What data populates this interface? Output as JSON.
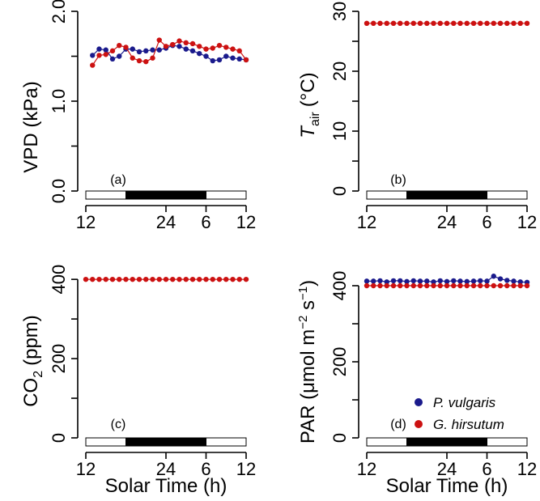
{
  "colors": {
    "p_vulgaris": "#1a1a8c",
    "g_hirsutum": "#cc1111",
    "night_bar": "#000000",
    "day_bar": "#ffffff"
  },
  "legend": {
    "placement": "bottom-right of panel (d)",
    "items": [
      {
        "label": "P. vulgaris",
        "color": "#1a1a8c"
      },
      {
        "label": "G. hirsutum",
        "color": "#cc1111"
      }
    ]
  },
  "x_axis": {
    "title": "Solar Time (h)",
    "ticks": [
      {
        "value": 0,
        "label": "12"
      },
      {
        "value": 12,
        "label": "24"
      },
      {
        "value": 18,
        "label": "6"
      },
      {
        "value": 24,
        "label": "12"
      }
    ],
    "light_schedule": [
      {
        "start": 0,
        "end": 6,
        "state": "light"
      },
      {
        "start": 6,
        "end": 18,
        "state": "dark"
      },
      {
        "start": 18,
        "end": 24,
        "state": "light"
      }
    ]
  },
  "chart_data": [
    {
      "panel": "(a)",
      "type": "line",
      "ylabel": "VPD (kPa)",
      "ylim": [
        0,
        2.0
      ],
      "yticks": [
        "0.0",
        "1.0",
        "2.0"
      ],
      "series": [
        {
          "name": "P. vulgaris",
          "x": [
            1,
            2,
            3,
            4,
            5,
            6,
            7,
            8,
            9,
            10,
            11,
            12,
            13,
            14,
            15,
            16,
            17,
            18,
            19,
            20,
            21,
            22,
            23,
            24
          ],
          "values": [
            1.51,
            1.58,
            1.57,
            1.47,
            1.5,
            1.58,
            1.58,
            1.55,
            1.56,
            1.57,
            1.57,
            1.59,
            1.62,
            1.61,
            1.58,
            1.56,
            1.53,
            1.5,
            1.45,
            1.46,
            1.5,
            1.48,
            1.47,
            1.46
          ]
        },
        {
          "name": "G. hirsutum",
          "x": [
            1,
            2,
            3,
            4,
            5,
            6,
            7,
            8,
            9,
            10,
            11,
            12,
            13,
            14,
            15,
            16,
            17,
            18,
            19,
            20,
            21,
            22,
            23,
            24
          ],
          "values": [
            1.4,
            1.51,
            1.52,
            1.56,
            1.62,
            1.6,
            1.48,
            1.45,
            1.44,
            1.48,
            1.68,
            1.61,
            1.63,
            1.67,
            1.65,
            1.64,
            1.61,
            1.58,
            1.59,
            1.62,
            1.6,
            1.58,
            1.56,
            1.46
          ]
        }
      ]
    },
    {
      "panel": "(b)",
      "type": "line",
      "ylabel_main": "T",
      "ylabel_sub": "air",
      "ylabel_unit": "(°C)",
      "ylim": [
        0,
        30
      ],
      "yticks": [
        "0",
        "10",
        "20",
        "30"
      ],
      "series": [
        {
          "name": "G. hirsutum",
          "x": [
            0,
            1,
            2,
            3,
            4,
            5,
            6,
            7,
            8,
            9,
            10,
            11,
            12,
            13,
            14,
            15,
            16,
            17,
            18,
            19,
            20,
            21,
            22,
            23,
            24
          ],
          "values": [
            28,
            28,
            28,
            28,
            28,
            28,
            28,
            28,
            28,
            28,
            28,
            28,
            28,
            28,
            28,
            28,
            28,
            28,
            28,
            28,
            28,
            28,
            28,
            28,
            28
          ]
        }
      ]
    },
    {
      "panel": "(c)",
      "type": "line",
      "ylabel_main": "CO",
      "ylabel_sub": "2",
      "ylabel_unit": "(ppm)",
      "ylim": [
        0,
        480
      ],
      "yticks": [
        "0",
        "200",
        "400"
      ],
      "series": [
        {
          "name": "G. hirsutum",
          "x": [
            0,
            1,
            2,
            3,
            4,
            5,
            6,
            7,
            8,
            9,
            10,
            11,
            12,
            13,
            14,
            15,
            16,
            17,
            18,
            19,
            20,
            21,
            22,
            23,
            24
          ],
          "values": [
            400,
            400,
            400,
            400,
            400,
            400,
            400,
            400,
            400,
            400,
            400,
            400,
            400,
            400,
            400,
            400,
            400,
            400,
            400,
            400,
            400,
            400,
            400,
            400,
            400
          ]
        }
      ]
    },
    {
      "panel": "(d)",
      "type": "line",
      "ylabel": "PAR (μmol m−2 s−1)",
      "ylim": [
        0,
        500
      ],
      "yticks": [
        "0",
        "200",
        "400"
      ],
      "series": [
        {
          "name": "P. vulgaris",
          "x": [
            0,
            1,
            2,
            3,
            4,
            5,
            6,
            7,
            8,
            9,
            10,
            11,
            12,
            13,
            14,
            15,
            16,
            17,
            18,
            19,
            20,
            21,
            22,
            23,
            24
          ],
          "values": [
            412,
            412,
            413,
            410,
            413,
            413,
            411,
            413,
            412,
            412,
            410,
            413,
            411,
            413,
            412,
            411,
            412,
            413,
            412,
            425,
            418,
            414,
            412,
            410,
            409
          ]
        },
        {
          "name": "G. hirsutum",
          "x": [
            0,
            1,
            2,
            3,
            4,
            5,
            6,
            7,
            8,
            9,
            10,
            11,
            12,
            13,
            14,
            15,
            16,
            17,
            18,
            19,
            20,
            21,
            22,
            23,
            24
          ],
          "values": [
            400,
            400,
            400,
            400,
            400,
            400,
            400,
            400,
            400,
            400,
            400,
            400,
            400,
            400,
            400,
            400,
            400,
            400,
            400,
            400,
            400,
            400,
            400,
            400,
            400
          ]
        }
      ]
    }
  ]
}
